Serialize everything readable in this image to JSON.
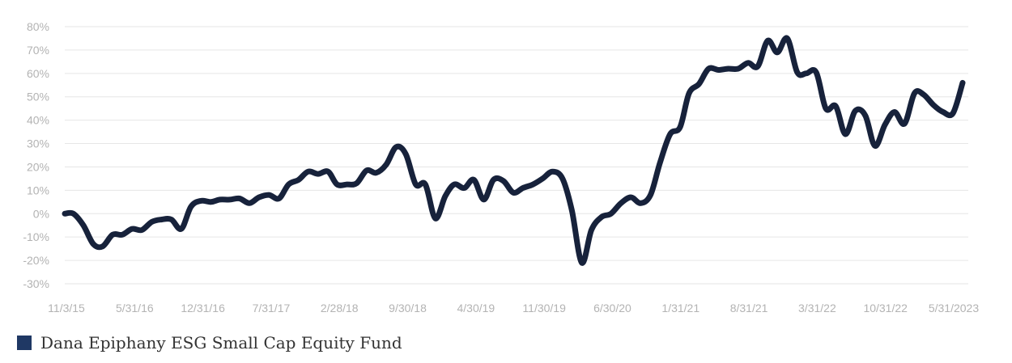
{
  "chart_data": {
    "type": "line",
    "y_ticks": [
      "80%",
      "70%",
      "60%",
      "50%",
      "40%",
      "30%",
      "20%",
      "10%",
      "0%",
      "-10%",
      "-20%",
      "-30%"
    ],
    "ylim": [
      -30,
      80
    ],
    "x_ticks": [
      "11/3/15",
      "5/31/16",
      "12/31/16",
      "7/31/17",
      "2/28/18",
      "9/30/18",
      "4/30/19",
      "11/30/19",
      "6/30/20",
      "1/31/21",
      "8/31/21",
      "3/31/22",
      "10/31/22",
      "5/31/2023"
    ],
    "grid": true,
    "legend_position": "bottom-left",
    "series": [
      {
        "name": "Dana Epiphany ESG Small Cap Equity Fund",
        "color": "#17223b",
        "points": [
          [
            "2015-11-03",
            0
          ],
          [
            "2015-11-30",
            0
          ],
          [
            "2015-12-31",
            -5
          ],
          [
            "2016-01-31",
            -13
          ],
          [
            "2016-02-29",
            -14
          ],
          [
            "2016-03-31",
            -9
          ],
          [
            "2016-04-30",
            -9
          ],
          [
            "2016-05-31",
            -6.5
          ],
          [
            "2016-06-30",
            -7
          ],
          [
            "2016-07-31",
            -3.5
          ],
          [
            "2016-08-31",
            -2.5
          ],
          [
            "2016-09-30",
            -2.5
          ],
          [
            "2016-10-31",
            -6.5
          ],
          [
            "2016-11-30",
            3
          ],
          [
            "2016-12-31",
            5.5
          ],
          [
            "2017-01-31",
            5
          ],
          [
            "2017-02-28",
            6
          ],
          [
            "2017-03-31",
            6
          ],
          [
            "2017-04-30",
            6.5
          ],
          [
            "2017-05-31",
            4.5
          ],
          [
            "2017-06-30",
            7
          ],
          [
            "2017-07-31",
            8
          ],
          [
            "2017-08-31",
            6.5
          ],
          [
            "2017-09-30",
            12.5
          ],
          [
            "2017-10-31",
            14.5
          ],
          [
            "2017-11-30",
            18
          ],
          [
            "2017-12-31",
            17
          ],
          [
            "2018-01-31",
            18
          ],
          [
            "2018-02-28",
            12.5
          ],
          [
            "2018-03-31",
            12.5
          ],
          [
            "2018-04-30",
            13
          ],
          [
            "2018-05-31",
            18.5
          ],
          [
            "2018-06-30",
            17.5
          ],
          [
            "2018-07-31",
            21
          ],
          [
            "2018-08-31",
            28.5
          ],
          [
            "2018-09-30",
            25.5
          ],
          [
            "2018-10-31",
            12.5
          ],
          [
            "2018-11-30",
            12.5
          ],
          [
            "2018-12-31",
            -2
          ],
          [
            "2019-01-31",
            7.5
          ],
          [
            "2019-02-28",
            12.5
          ],
          [
            "2019-03-31",
            11
          ],
          [
            "2019-04-30",
            14.5
          ],
          [
            "2019-05-31",
            6
          ],
          [
            "2019-06-30",
            14.5
          ],
          [
            "2019-07-31",
            14
          ],
          [
            "2019-08-31",
            9
          ],
          [
            "2019-09-30",
            11
          ],
          [
            "2019-10-31",
            12.5
          ],
          [
            "2019-11-30",
            15
          ],
          [
            "2019-12-31",
            18
          ],
          [
            "2020-01-31",
            15
          ],
          [
            "2020-02-29",
            1.5
          ],
          [
            "2020-03-31",
            -21
          ],
          [
            "2020-04-30",
            -7
          ],
          [
            "2020-05-31",
            -1.5
          ],
          [
            "2020-06-30",
            0
          ],
          [
            "2020-07-31",
            4.5
          ],
          [
            "2020-08-31",
            7
          ],
          [
            "2020-09-30",
            4.5
          ],
          [
            "2020-10-31",
            8
          ],
          [
            "2020-11-30",
            22
          ],
          [
            "2020-12-31",
            34
          ],
          [
            "2021-01-31",
            37
          ],
          [
            "2021-02-28",
            51.5
          ],
          [
            "2021-03-31",
            55.5
          ],
          [
            "2021-04-30",
            62
          ],
          [
            "2021-05-31",
            61.5
          ],
          [
            "2021-06-30",
            62
          ],
          [
            "2021-07-31",
            62
          ],
          [
            "2021-08-31",
            64.5
          ],
          [
            "2021-09-30",
            63
          ],
          [
            "2021-10-31",
            74
          ],
          [
            "2021-11-30",
            69
          ],
          [
            "2021-12-31",
            75
          ],
          [
            "2022-01-31",
            60.5
          ],
          [
            "2022-02-28",
            60
          ],
          [
            "2022-03-31",
            60.5
          ],
          [
            "2022-04-30",
            45
          ],
          [
            "2022-05-31",
            46
          ],
          [
            "2022-06-30",
            34
          ],
          [
            "2022-07-31",
            44
          ],
          [
            "2022-08-31",
            42
          ],
          [
            "2022-09-30",
            29
          ],
          [
            "2022-10-31",
            38
          ],
          [
            "2022-11-30",
            43.5
          ],
          [
            "2022-12-31",
            38.5
          ],
          [
            "2023-01-31",
            51.5
          ],
          [
            "2023-02-28",
            51
          ],
          [
            "2023-03-31",
            46.5
          ],
          [
            "2023-04-30",
            43.5
          ],
          [
            "2023-05-31",
            43
          ],
          [
            "2023-06-30",
            56
          ]
        ]
      }
    ]
  }
}
